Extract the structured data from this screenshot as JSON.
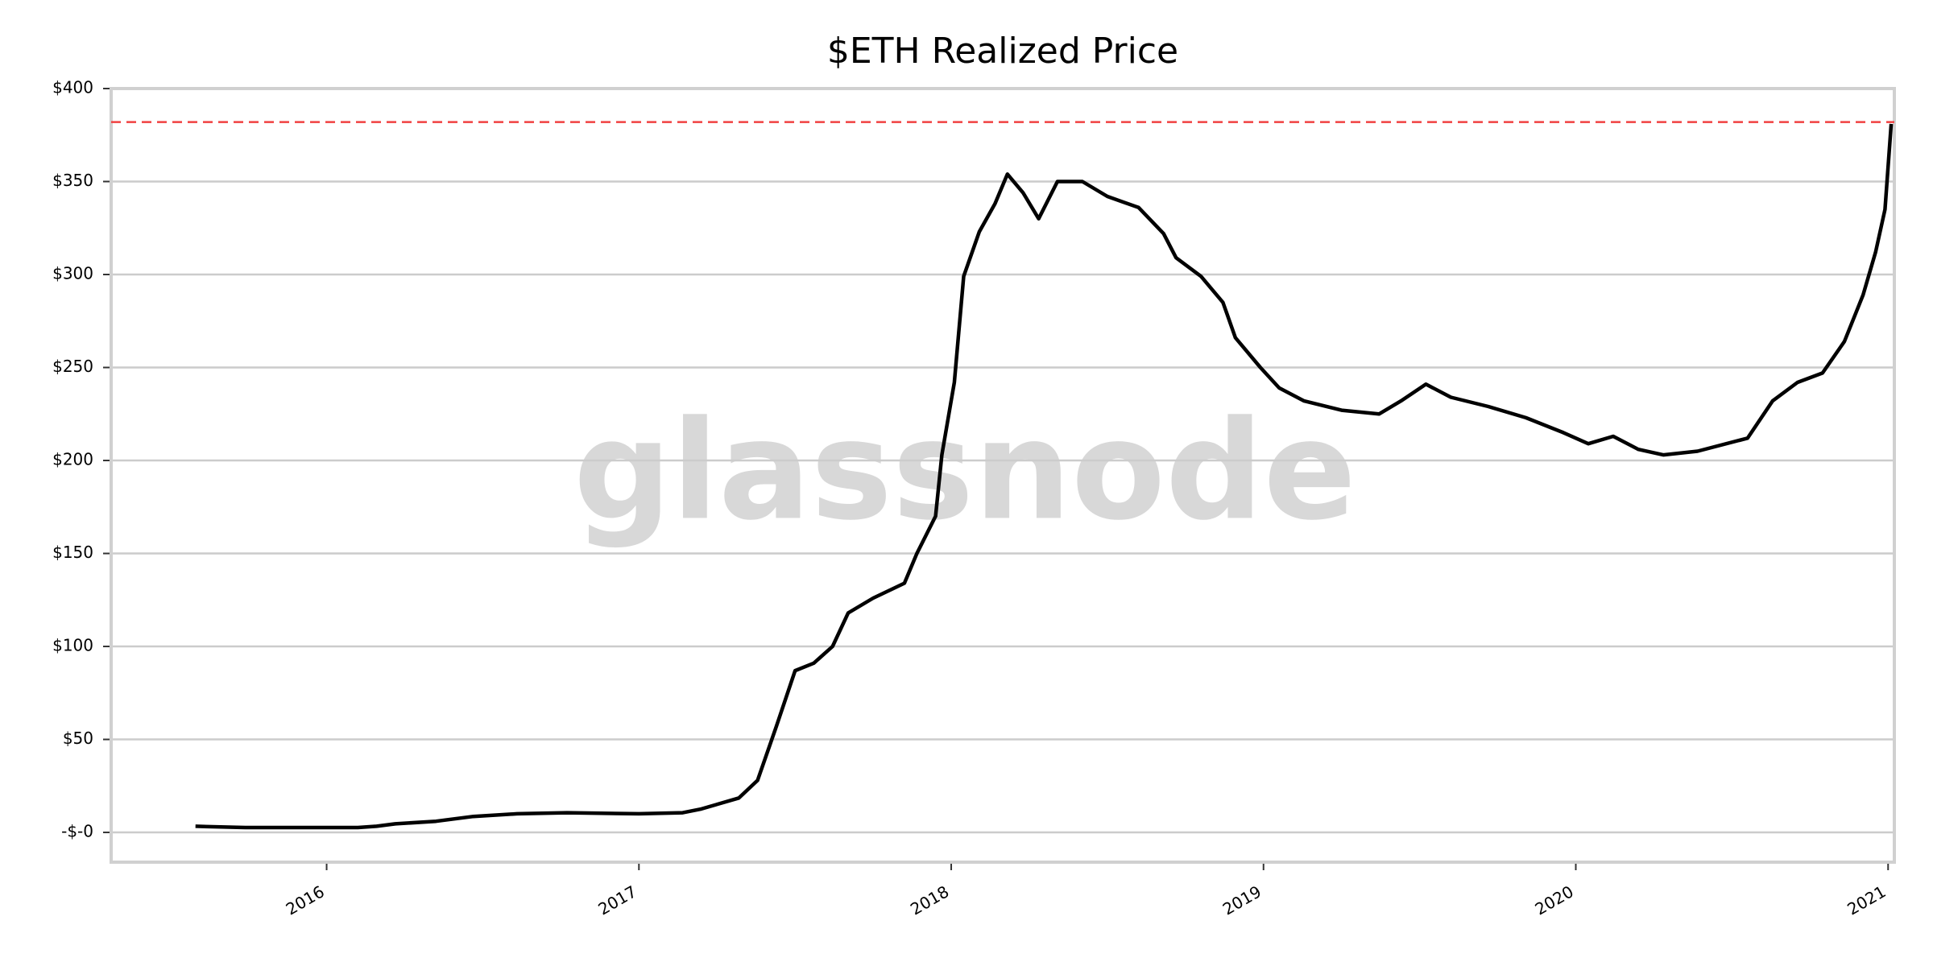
{
  "chart_data": {
    "type": "line",
    "title": "$ETH Realized Price",
    "watermark": "glassnode",
    "x": [
      2015.58,
      2015.74,
      2016.1,
      2016.16,
      2016.22,
      2016.35,
      2016.47,
      2016.61,
      2016.77,
      2017.0,
      2017.14,
      2017.2,
      2017.32,
      2017.38,
      2017.44,
      2017.5,
      2017.56,
      2017.62,
      2017.67,
      2017.75,
      2017.85,
      2017.89,
      2017.95,
      2017.97,
      2018.01,
      2018.04,
      2018.09,
      2018.14,
      2018.18,
      2018.23,
      2018.28,
      2018.34,
      2018.42,
      2018.5,
      2018.6,
      2018.68,
      2018.72,
      2018.8,
      2018.87,
      2018.91,
      2018.99,
      2019.05,
      2019.13,
      2019.25,
      2019.37,
      2019.44,
      2019.52,
      2019.6,
      2019.72,
      2019.84,
      2019.96,
      2020.04,
      2020.12,
      2020.2,
      2020.28,
      2020.39,
      2020.55,
      2020.63,
      2020.71,
      2020.79,
      2020.86,
      2020.92,
      2020.96,
      2020.99,
      2021.01
    ],
    "values": [
      3.3,
      2.6,
      2.6,
      3.3,
      4.6,
      6,
      8.6,
      10,
      10.6,
      10,
      10.6,
      12.6,
      18.5,
      28,
      57,
      87,
      91,
      100,
      118,
      126,
      134,
      150,
      170,
      203,
      242,
      299,
      323,
      338,
      354,
      344,
      330,
      350,
      350,
      342,
      336,
      322,
      309,
      299,
      285,
      266,
      250,
      239,
      232,
      227,
      225,
      232,
      241,
      234,
      229,
      223,
      215,
      209,
      213,
      206,
      203,
      205,
      212,
      232,
      242,
      247,
      264,
      289,
      312,
      335,
      381
    ],
    "color": "#000000",
    "reference_line": {
      "value": 382,
      "color": "#f04040"
    },
    "xlim": [
      2015.31,
      2021.02
    ],
    "xticks": [
      2016,
      2017,
      2018,
      2019,
      2020,
      2021
    ],
    "ylim": [
      -16,
      400
    ],
    "yticks": [
      {
        "value": 0,
        "label": "-$-0"
      },
      {
        "value": 50,
        "label": "$50"
      },
      {
        "value": 100,
        "label": "$100"
      },
      {
        "value": 150,
        "label": "$150"
      },
      {
        "value": 200,
        "label": "$200"
      },
      {
        "value": 250,
        "label": "$250"
      },
      {
        "value": 300,
        "label": "$300"
      },
      {
        "value": 350,
        "label": "$350"
      },
      {
        "value": 400,
        "label": "$400"
      }
    ],
    "grid": true
  }
}
